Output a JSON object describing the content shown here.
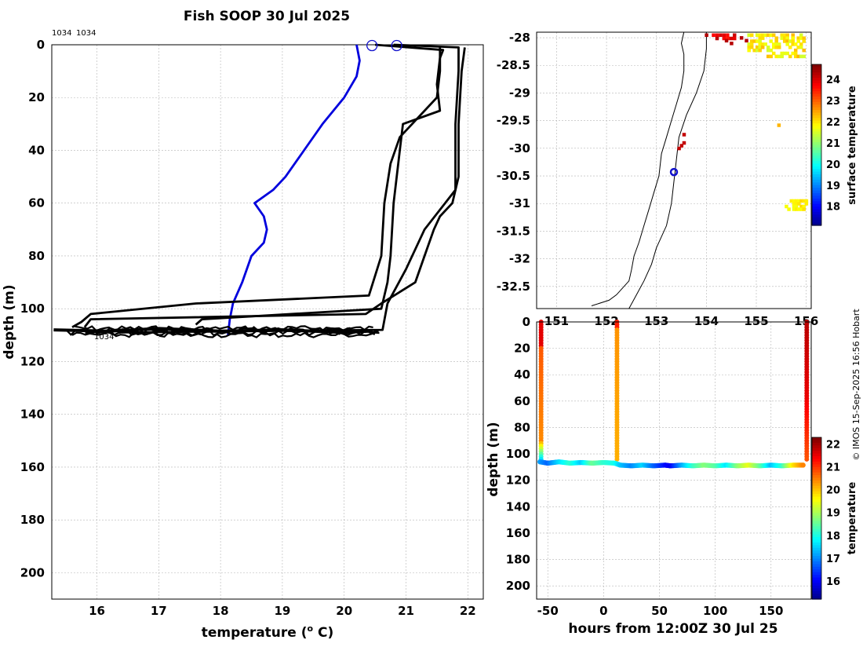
{
  "title": "Fish SOOP 30 Jul 2025",
  "credit": "© IMOS 15-Sep-2025 16:56 Hobart",
  "colors": {
    "profile": "#000000",
    "mean": "#0000dd",
    "grid": "#b4b4b4",
    "marker": "#1010cc"
  },
  "chart_data": [
    {
      "type": "line",
      "name": "temperature-depth profiles",
      "xlabel": "temperature (°C)",
      "ylabel": "depth (m)",
      "xlim": [
        15.27,
        22.25
      ],
      "ylim": [
        0,
        210
      ],
      "y_reversed": true,
      "xticks": [
        16,
        17,
        18,
        19,
        20,
        21,
        22
      ],
      "yticks": [
        0,
        20,
        40,
        60,
        80,
        100,
        120,
        140,
        160,
        180,
        200
      ],
      "top_labels": [
        "1034",
        "1034"
      ],
      "profile_label": "1034",
      "series": [
        {
          "name": "blue-profile",
          "points": [
            [
              20.2,
              0
            ],
            [
              20.25,
              6
            ],
            [
              20.2,
              12
            ],
            [
              20.0,
              20
            ],
            [
              19.65,
              30
            ],
            [
              19.35,
              40
            ],
            [
              19.05,
              50
            ],
            [
              18.85,
              55
            ],
            [
              18.55,
              60
            ],
            [
              18.7,
              65
            ],
            [
              18.75,
              70
            ],
            [
              18.7,
              75
            ],
            [
              18.5,
              80
            ],
            [
              18.35,
              90
            ],
            [
              18.2,
              98
            ],
            [
              18.15,
              104
            ],
            [
              18.12,
              110
            ]
          ]
        },
        {
          "name": "black-profile-1",
          "points": [
            [
              20.5,
              0
            ],
            [
              21.6,
              2
            ],
            [
              21.55,
              5
            ],
            [
              21.5,
              15
            ],
            [
              21.55,
              25
            ],
            [
              20.95,
              30
            ],
            [
              20.9,
              40
            ],
            [
              20.8,
              60
            ],
            [
              20.75,
              80
            ],
            [
              20.7,
              90
            ],
            [
              20.6,
              100
            ],
            [
              17.7,
              104
            ],
            [
              17.6,
              106
            ]
          ]
        },
        {
          "name": "black-profile-2",
          "points": [
            [
              20.8,
              0
            ],
            [
              21.85,
              1
            ],
            [
              21.85,
              10
            ],
            [
              21.8,
              30
            ],
            [
              21.8,
              55
            ],
            [
              21.3,
              70
            ],
            [
              21.0,
              85
            ],
            [
              20.7,
              98
            ],
            [
              20.62,
              108
            ],
            [
              16.4,
              109
            ]
          ]
        },
        {
          "name": "black-profile-3",
          "points": [
            [
              21.95,
              1
            ],
            [
              21.9,
              10
            ],
            [
              21.85,
              30
            ],
            [
              21.85,
              50
            ],
            [
              21.75,
              60
            ],
            [
              21.55,
              65
            ],
            [
              21.45,
              70
            ],
            [
              21.3,
              80
            ],
            [
              21.15,
              90
            ],
            [
              20.6,
              98
            ],
            [
              20.35,
              102
            ],
            [
              15.9,
              104
            ],
            [
              15.8,
              107
            ]
          ]
        },
        {
          "name": "black-profile-4",
          "points": [
            [
              21.55,
              1
            ],
            [
              21.55,
              10
            ],
            [
              21.5,
              20
            ],
            [
              20.9,
              35
            ],
            [
              20.75,
              45
            ],
            [
              20.65,
              60
            ],
            [
              20.6,
              80
            ],
            [
              20.4,
              95
            ],
            [
              17.6,
              98
            ],
            [
              15.9,
              102
            ],
            [
              15.75,
              105
            ],
            [
              15.6,
              107
            ]
          ]
        },
        {
          "name": "bottom-traces",
          "points": [
            [
              15.3,
              108
            ],
            [
              16.2,
              108.5
            ],
            [
              17.0,
              107.5
            ],
            [
              18.0,
              108.5
            ],
            [
              19.0,
              108
            ],
            [
              20.0,
              109
            ],
            [
              20.4,
              108.5
            ],
            [
              20.5,
              109.5
            ]
          ]
        }
      ],
      "markers": [
        [
          20.45,
          0.3
        ],
        [
          20.85,
          0.3
        ]
      ]
    },
    {
      "type": "heatmap",
      "name": "surface temperature map",
      "ylim": [
        -32.9,
        -27.9
      ],
      "yticks": [
        -28,
        -28.5,
        -29,
        -29.5,
        -30,
        -30.5,
        -31,
        -31.5,
        -32,
        -32.5
      ],
      "xlim": [
        150.6,
        156.1
      ],
      "xticks": [
        151,
        152,
        153,
        154,
        155,
        156
      ],
      "colorbar": {
        "label": "surface temperature",
        "ticks": [
          18,
          19,
          20,
          21,
          22,
          23,
          24
        ],
        "range": [
          17.1,
          24.7
        ]
      },
      "position": {
        "lon": 153.35,
        "lat": -30.43
      }
    },
    {
      "type": "scatter",
      "name": "depth-time section",
      "xlabel": "hours from 12:00Z 30 Jul 25",
      "ylabel": "depth (m)",
      "xlim": [
        -60,
        186
      ],
      "ylim": [
        0,
        210
      ],
      "y_reversed": true,
      "xticks": [
        -50,
        0,
        50,
        100,
        150
      ],
      "yticks": [
        0,
        20,
        40,
        60,
        80,
        100,
        120,
        140,
        160,
        180,
        200
      ],
      "colorbar": {
        "label": "temperature",
        "ticks": [
          16,
          17,
          18,
          19,
          20,
          21,
          22
        ],
        "range": [
          15.2,
          22.3
        ]
      },
      "casts_hours": [
        -56,
        12,
        182
      ],
      "bottom_track": [
        [
          -57,
          106,
          17.2
        ],
        [
          -50,
          107,
          16.8
        ],
        [
          -40,
          106,
          17.6
        ],
        [
          -30,
          107,
          18.2
        ],
        [
          -20,
          106.5,
          17.5
        ],
        [
          -10,
          107,
          18.6
        ],
        [
          0,
          106.5,
          18.2
        ],
        [
          10,
          107,
          18.0
        ],
        [
          15,
          108.5,
          17.5
        ],
        [
          25,
          109,
          17.0
        ],
        [
          35,
          108.5,
          17.6
        ],
        [
          45,
          109,
          16.8
        ],
        [
          55,
          108.5,
          16.2
        ],
        [
          60,
          109,
          16.0
        ],
        [
          70,
          108.5,
          17.2
        ],
        [
          80,
          109,
          18.2
        ],
        [
          90,
          108.5,
          18.8
        ],
        [
          100,
          109,
          18.5
        ],
        [
          110,
          108.5,
          17.7
        ],
        [
          120,
          109,
          18.8
        ],
        [
          130,
          108.5,
          19.5
        ],
        [
          140,
          109,
          18.6
        ],
        [
          150,
          108.5,
          17.4
        ],
        [
          160,
          109,
          18.2
        ],
        [
          170,
          108.5,
          19.8
        ],
        [
          180,
          108.5,
          20.6
        ]
      ]
    }
  ]
}
